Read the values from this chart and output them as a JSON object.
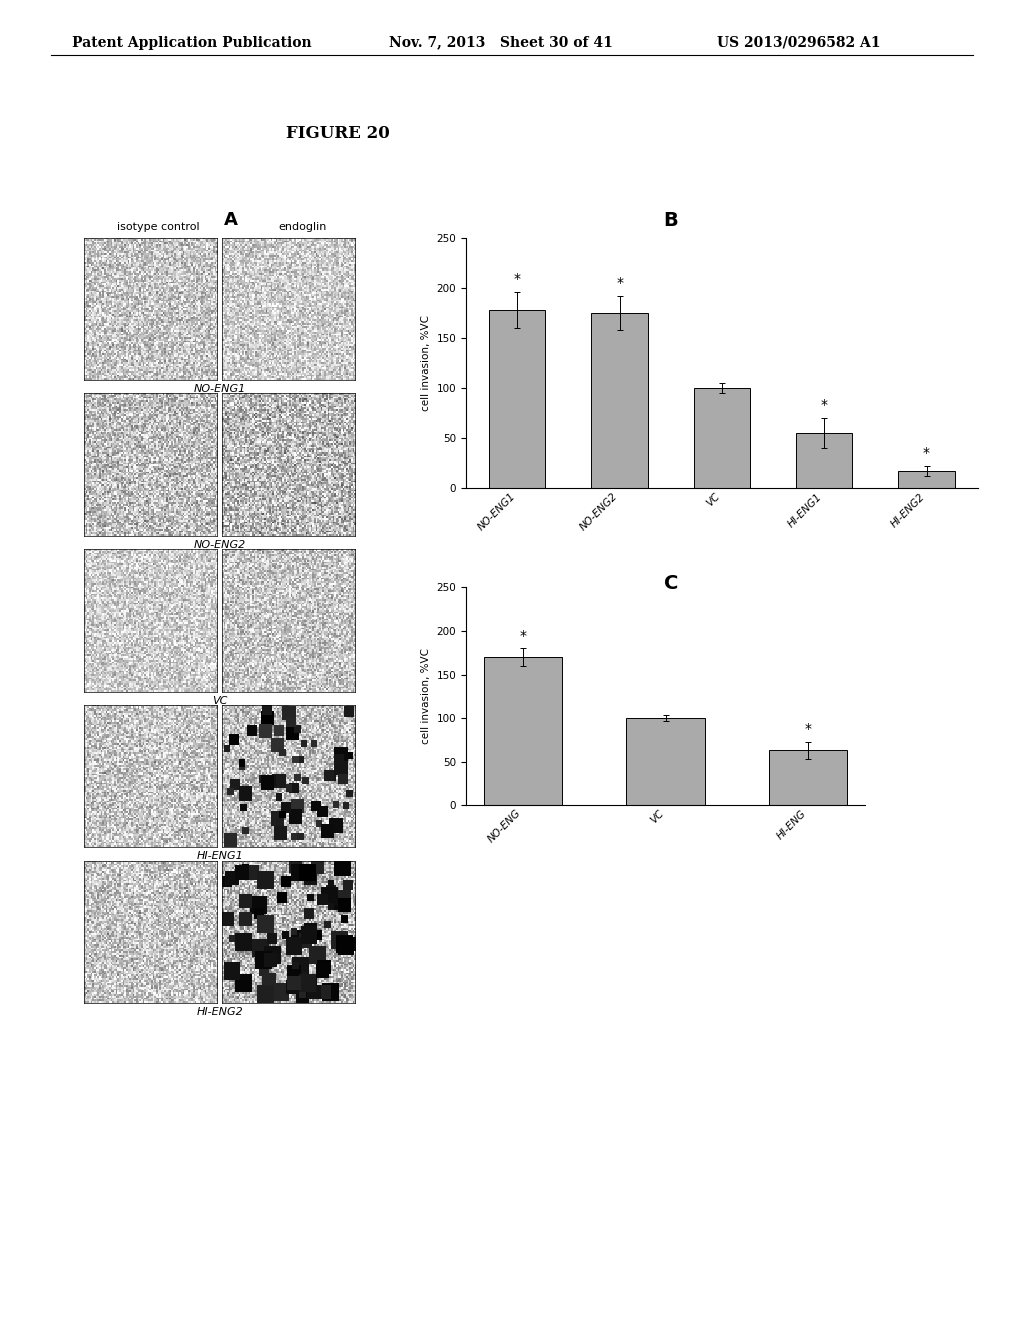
{
  "header_left": "Patent Application Publication",
  "header_mid": "Nov. 7, 2013   Sheet 30 of 41",
  "header_right": "US 2013/0296582 A1",
  "figure_label": "FIGURE 20",
  "panel_a_label": "A",
  "panel_b_label": "B",
  "panel_c_label": "C",
  "panel_a_col1": "isotype control",
  "panel_a_col2": "endoglin",
  "panel_a_rows": [
    "NO-ENG1",
    "NO-ENG2",
    "VC",
    "HI-ENG1",
    "HI-ENG2"
  ],
  "bar_color": "#aaaaaa",
  "panel_b_categories": [
    "NO-ENG1",
    "NO-ENG2",
    "VC",
    "HI-ENG1",
    "HI-ENG2"
  ],
  "panel_b_values": [
    178,
    175,
    100,
    55,
    17
  ],
  "panel_b_errors": [
    18,
    17,
    5,
    15,
    5
  ],
  "panel_b_stars": [
    true,
    true,
    false,
    true,
    true
  ],
  "panel_b_ylabel": "cell invasion, %VC",
  "panel_b_ylim": [
    0,
    250
  ],
  "panel_b_yticks": [
    0,
    50,
    100,
    150,
    200,
    250
  ],
  "panel_c_categories": [
    "NO-ENG",
    "VC",
    "HI-ENG"
  ],
  "panel_c_values": [
    170,
    100,
    63
  ],
  "panel_c_errors": [
    10,
    3,
    10
  ],
  "panel_c_stars": [
    true,
    false,
    true
  ],
  "panel_c_ylabel": "cell invasion, %VC",
  "panel_c_ylim": [
    0,
    250
  ],
  "panel_c_yticks": [
    0,
    50,
    100,
    150,
    200,
    250
  ],
  "bg_color": "#ffffff",
  "text_color": "#000000"
}
